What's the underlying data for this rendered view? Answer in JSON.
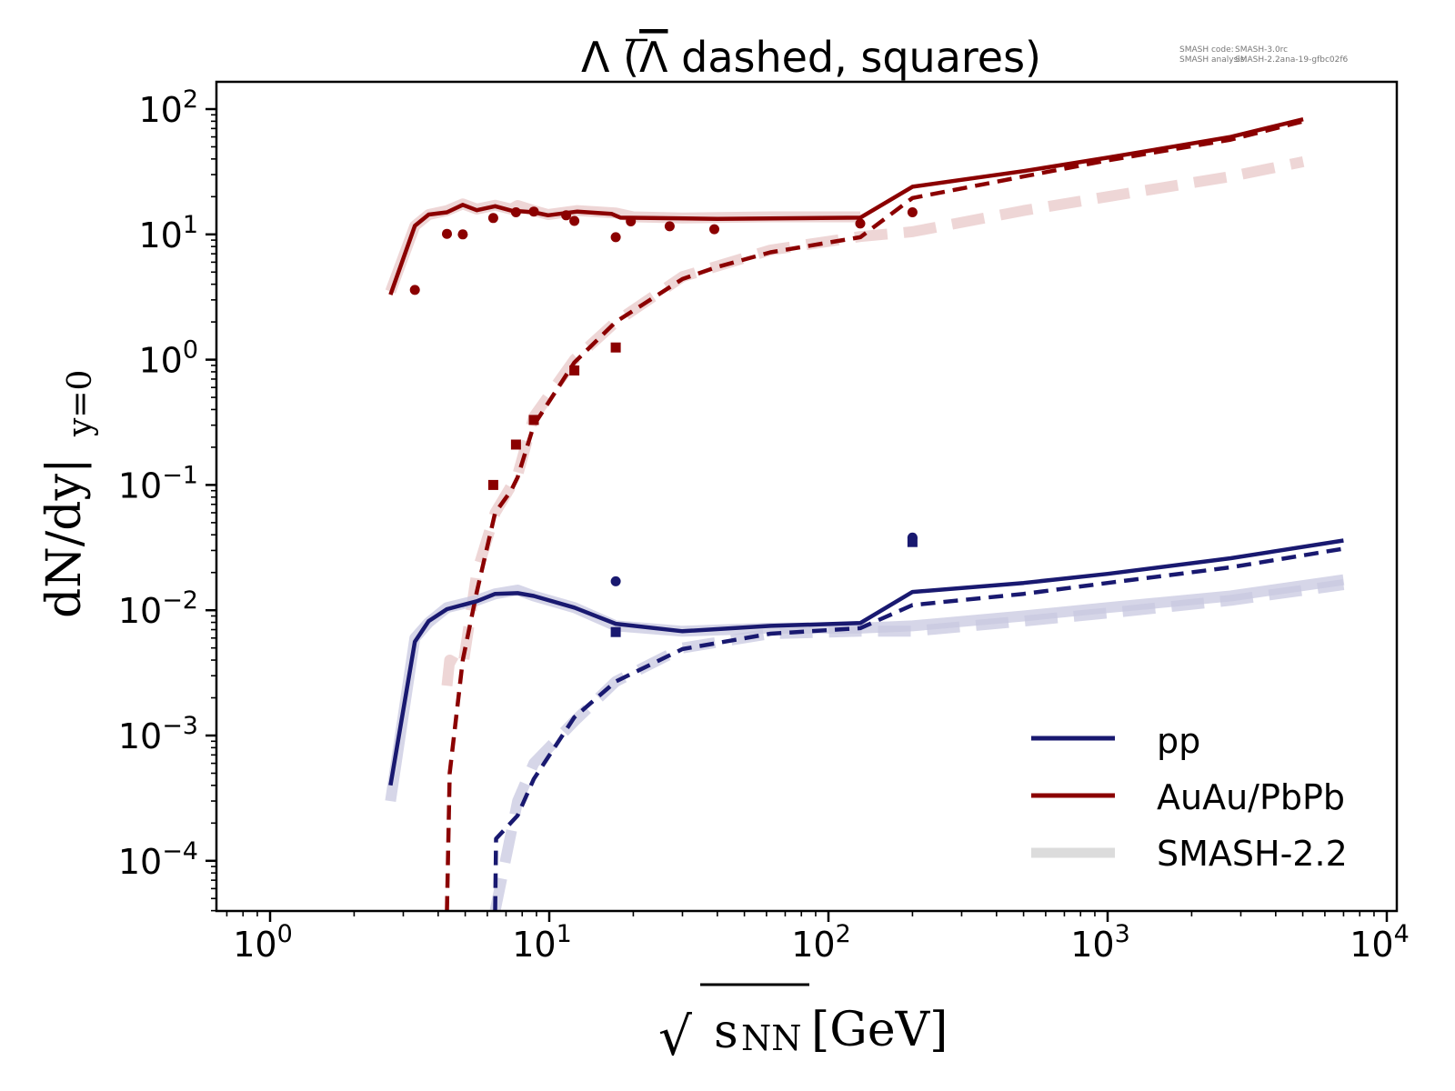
{
  "chart_data": {
    "type": "line",
    "title": "Λ (Λ̅ dashed, squares)",
    "title_parts": {
      "lambda": "Λ",
      "rest": " dashed, squares)",
      "open": " (",
      "antilambda": "Λ"
    },
    "xlabel": "√s_NN [GeV]",
    "xlabel_parts": {
      "sqrt": "√",
      "s": "s",
      "sub": "NN",
      "unit": "[GeV]"
    },
    "ylabel": "dN/dy|_{y=0}",
    "ylabel_parts": {
      "main": "dN/dy|",
      "sub": "y=0"
    },
    "xscale": "log",
    "yscale": "log",
    "xlim": [
      0.65,
      10900
    ],
    "ylim": [
      4e-05,
      166
    ],
    "grid": false,
    "x_ticks": [
      {
        "value": 1,
        "mantissa": "10",
        "exp": "0"
      },
      {
        "value": 10,
        "mantissa": "10",
        "exp": "1"
      },
      {
        "value": 100,
        "mantissa": "10",
        "exp": "2"
      },
      {
        "value": 1000,
        "mantissa": "10",
        "exp": "3"
      },
      {
        "value": 10000,
        "mantissa": "10",
        "exp": "4"
      }
    ],
    "y_ticks": [
      {
        "value": 100,
        "mantissa": "10",
        "exp": "2"
      },
      {
        "value": 10,
        "mantissa": "10",
        "exp": "1"
      },
      {
        "value": 1,
        "mantissa": "10",
        "exp": "0"
      },
      {
        "value": 0.1,
        "mantissa": "10",
        "exp": "−1"
      },
      {
        "value": 0.01,
        "mantissa": "10",
        "exp": "−2"
      },
      {
        "value": 0.001,
        "mantissa": "10",
        "exp": "−3"
      },
      {
        "value": 0.0001,
        "mantissa": "10",
        "exp": "−4"
      }
    ],
    "legend": {
      "placement": "lower-right",
      "entries": [
        {
          "label": "pp",
          "color": "#191970",
          "style": "solid"
        },
        {
          "label": "AuAu/PbPb",
          "color": "#8b0000",
          "style": "solid"
        },
        {
          "label": "SMASH-2.2",
          "color": "#dcdcdc",
          "style": "thick"
        }
      ]
    },
    "annotation": {
      "code_label": "SMASH code:",
      "code_value": "SMASH-3.0rc",
      "analysis_label": "SMASH analysis:",
      "analysis_value": "SMASH-2.2ana-19-gfbc02f6"
    },
    "colors": {
      "pp": "#191970",
      "aa": "#8b0000",
      "pp_old": "#c8c8e0",
      "aa_old": "#e8c8c8"
    },
    "series": [
      {
        "name": "SMASH-2.2 AuAu/PbPb Λ",
        "group": "old",
        "color_key": "aa_old",
        "dashed": false,
        "x": [
          2.7,
          3.3,
          3.7,
          4.3,
          4.9,
          5.5,
          6.4,
          7.3,
          7.7,
          8.8,
          9.9,
          12.6,
          17.3,
          20,
          30,
          62,
          130
        ],
        "y": [
          3.5,
          11.7,
          14.4,
          15.5,
          17.5,
          15.9,
          17.1,
          15.9,
          17.0,
          15.5,
          14.4,
          15.5,
          14.8,
          13.8,
          13.5,
          13.8,
          13.8
        ]
      },
      {
        "name": "SMASH-2.2 AuAu/PbPb Λ̅",
        "group": "old",
        "color_key": "aa_old",
        "dashed": true,
        "x": [
          4.3,
          4.4,
          4.9,
          5.5,
          6.4,
          7.7,
          8.8,
          12.3,
          17.3,
          30,
          62,
          130,
          200,
          500,
          1000,
          2760,
          5020
        ],
        "y": [
          0.0025,
          0.004,
          0.0035,
          0.02,
          0.06,
          0.12,
          0.35,
          1.0,
          2.0,
          4.6,
          7.5,
          9.6,
          10.5,
          15.5,
          20,
          29,
          38
        ]
      },
      {
        "name": "SMASH-2.2 pp Λ",
        "group": "old",
        "color_key": "pp_old",
        "dashed": false,
        "x": [
          2.7,
          3.3,
          3.7,
          4.3,
          5.5,
          6.4,
          7.7,
          8.8,
          12.3,
          17.3,
          30,
          62,
          130,
          200,
          500,
          1000,
          2760,
          7000
        ],
        "y": [
          0.0003,
          0.006,
          0.008,
          0.0105,
          0.012,
          0.0135,
          0.0145,
          0.013,
          0.0105,
          0.0075,
          0.0068,
          0.0072,
          0.0072,
          0.0075,
          0.009,
          0.0105,
          0.013,
          0.0175
        ]
      },
      {
        "name": "SMASH-2.2 pp Λ̅",
        "group": "old",
        "color_key": "pp_old",
        "dashed": true,
        "x": [
          6.4,
          7.7,
          8.8,
          12.3,
          17.3,
          30,
          62,
          130,
          200,
          500,
          1000,
          2760,
          7000
        ],
        "y": [
          4e-05,
          0.0003,
          0.0006,
          0.0013,
          0.0027,
          0.005,
          0.0065,
          0.0068,
          0.0068,
          0.0082,
          0.0095,
          0.012,
          0.016
        ]
      },
      {
        "name": "AuAu/PbPb Λ",
        "group": "new",
        "color_key": "aa",
        "dashed": false,
        "x": [
          2.7,
          3.3,
          3.7,
          4.3,
          4.9,
          5.5,
          6.4,
          7.3,
          8.8,
          9.9,
          12.6,
          16.7,
          18,
          23,
          40,
          130,
          200,
          500,
          1000,
          2760,
          5020
        ],
        "y": [
          3.3,
          11.7,
          14.4,
          15.0,
          17.2,
          15.6,
          16.8,
          15.5,
          15.0,
          14.2,
          15.2,
          14.6,
          13.6,
          13.5,
          13.3,
          13.6,
          24,
          32,
          41,
          60,
          83
        ]
      },
      {
        "name": "AuAu/PbPb Λ̅",
        "group": "new",
        "color_key": "aa",
        "dashed": true,
        "x": [
          4.3,
          4.4,
          4.9,
          5.5,
          6.4,
          7.3,
          7.7,
          8.8,
          12.3,
          17.3,
          30,
          40,
          62,
          130,
          200,
          500,
          1000,
          2760,
          5020
        ],
        "y": [
          4e-05,
          0.0005,
          0.004,
          0.014,
          0.06,
          0.09,
          0.115,
          0.3,
          0.95,
          2.0,
          4.4,
          5.5,
          7.2,
          9.5,
          19.5,
          29,
          39,
          57,
          80
        ]
      },
      {
        "name": "pp Λ",
        "group": "new",
        "color_key": "pp",
        "dashed": false,
        "x": [
          2.7,
          3.3,
          3.7,
          4.3,
          5.5,
          6.4,
          7.7,
          8.8,
          12.3,
          17.3,
          30,
          62,
          130,
          200,
          500,
          1000,
          2760,
          7000
        ],
        "y": [
          0.0004,
          0.0056,
          0.0082,
          0.0102,
          0.0118,
          0.0135,
          0.0137,
          0.013,
          0.0105,
          0.0078,
          0.0068,
          0.0075,
          0.0079,
          0.014,
          0.0165,
          0.0195,
          0.026,
          0.036
        ]
      },
      {
        "name": "pp Λ̅",
        "group": "new",
        "color_key": "pp",
        "dashed": true,
        "x": [
          6.4,
          6.45,
          7.7,
          8.8,
          12.3,
          17.3,
          30,
          62,
          130,
          200,
          500,
          1000,
          2760,
          7000
        ],
        "y": [
          4e-05,
          0.00015,
          0.00023,
          0.00045,
          0.0014,
          0.0027,
          0.0049,
          0.0065,
          0.0072,
          0.011,
          0.0135,
          0.0165,
          0.022,
          0.031
        ]
      }
    ],
    "markers": [
      {
        "name": "AuAu/PbPb Λ data",
        "color_key": "aa",
        "shape": "circle",
        "x": [
          3.3,
          4.3,
          4.9,
          6.3,
          7.6,
          8.8,
          11.5,
          12.3,
          17.3,
          19.6,
          27,
          39,
          130,
          200
        ],
        "y": [
          3.6,
          10.1,
          10.0,
          13.5,
          15.0,
          15.2,
          14.2,
          12.8,
          9.5,
          12.7,
          11.6,
          11.0,
          12.2,
          15.0
        ]
      },
      {
        "name": "AuAu/PbPb Λ̅ data",
        "color_key": "aa",
        "shape": "square",
        "x": [
          6.3,
          7.6,
          8.8,
          12.3,
          17.3
        ],
        "y": [
          0.1,
          0.21,
          0.33,
          0.82,
          1.25
        ]
      },
      {
        "name": "pp Λ data",
        "color_key": "pp",
        "shape": "circle",
        "x": [
          17.3,
          200
        ],
        "y": [
          0.017,
          0.038
        ]
      },
      {
        "name": "pp Λ̅ data",
        "color_key": "pp",
        "shape": "square",
        "x": [
          17.3,
          200
        ],
        "y": [
          0.0067,
          0.035
        ]
      }
    ]
  }
}
